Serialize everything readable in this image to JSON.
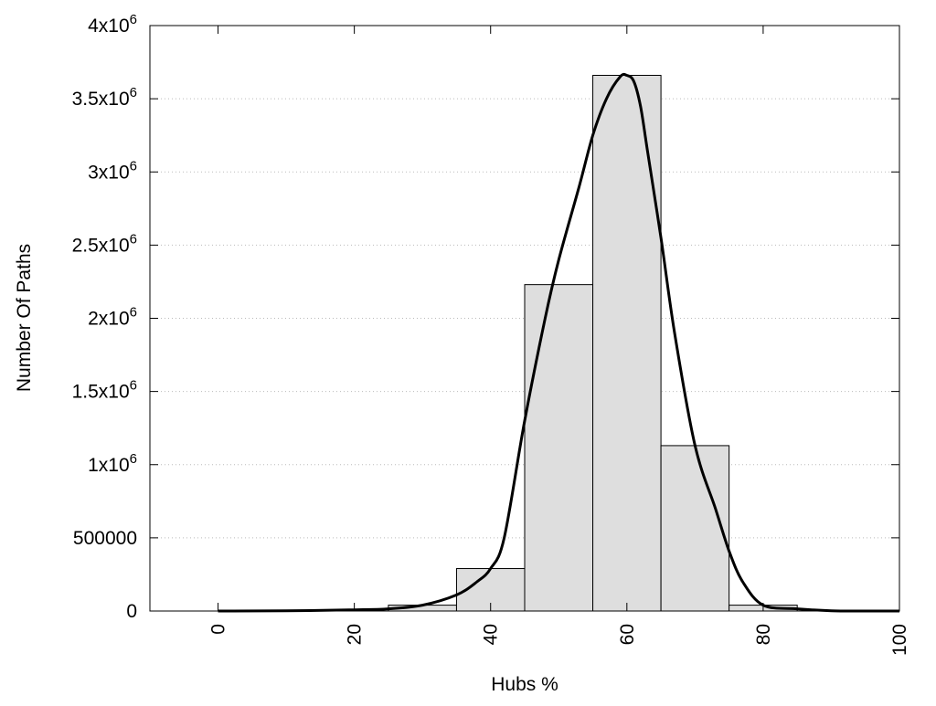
{
  "chart_data": {
    "type": "bar",
    "title": "",
    "xlabel": "Hubs %",
    "ylabel": "Number Of Paths",
    "xlim": [
      -10,
      100
    ],
    "ylim": [
      0,
      4000000
    ],
    "grid": {
      "x": false,
      "y": true,
      "style": "dotted"
    },
    "legend": "none",
    "x_ticks": [
      "0",
      "20",
      "40",
      "60",
      "80",
      "100"
    ],
    "x_tick_values": [
      0,
      20,
      40,
      60,
      80,
      100
    ],
    "y_ticks": [
      {
        "value": 0,
        "base": "0",
        "exp": ""
      },
      {
        "value": 500000,
        "base": "500000",
        "exp": ""
      },
      {
        "value": 1000000,
        "base": "1x10",
        "exp": "6"
      },
      {
        "value": 1500000,
        "base": "1.5x10",
        "exp": "6"
      },
      {
        "value": 2000000,
        "base": "2x10",
        "exp": "6"
      },
      {
        "value": 2500000,
        "base": "2.5x10",
        "exp": "6"
      },
      {
        "value": 3000000,
        "base": "3x10",
        "exp": "6"
      },
      {
        "value": 3500000,
        "base": "3.5x10",
        "exp": "6"
      },
      {
        "value": 4000000,
        "base": "4x10",
        "exp": "6"
      }
    ],
    "bars": [
      {
        "x_start": 25,
        "x_end": 35,
        "value": 40000
      },
      {
        "x_start": 35,
        "x_end": 45,
        "value": 290000
      },
      {
        "x_start": 45,
        "x_end": 55,
        "value": 2230000
      },
      {
        "x_start": 55,
        "x_end": 65,
        "value": 3660000
      },
      {
        "x_start": 65,
        "x_end": 75,
        "value": 1130000
      },
      {
        "x_start": 75,
        "x_end": 85,
        "value": 40000
      }
    ],
    "series": [
      {
        "type": "line",
        "x": [
          0,
          10,
          20,
          25,
          30,
          35,
          38,
          40,
          42,
          45,
          48,
          50,
          53,
          55,
          57,
          59,
          60,
          61,
          62,
          63,
          65,
          67,
          70,
          73,
          75,
          77,
          80,
          85,
          90,
          95,
          100
        ],
        "values": [
          0,
          2000,
          8000,
          15000,
          40000,
          110000,
          200000,
          290000,
          500000,
          1300000,
          2000000,
          2400000,
          2900000,
          3250000,
          3500000,
          3650000,
          3660000,
          3620000,
          3450000,
          3150000,
          2550000,
          1900000,
          1130000,
          700000,
          410000,
          200000,
          40000,
          15000,
          2000,
          0,
          0
        ]
      }
    ],
    "colors": {
      "bar_fill": "#dedede",
      "bar_stroke": "#000000",
      "line": "#000000",
      "grid": "#bbbbbb"
    }
  }
}
